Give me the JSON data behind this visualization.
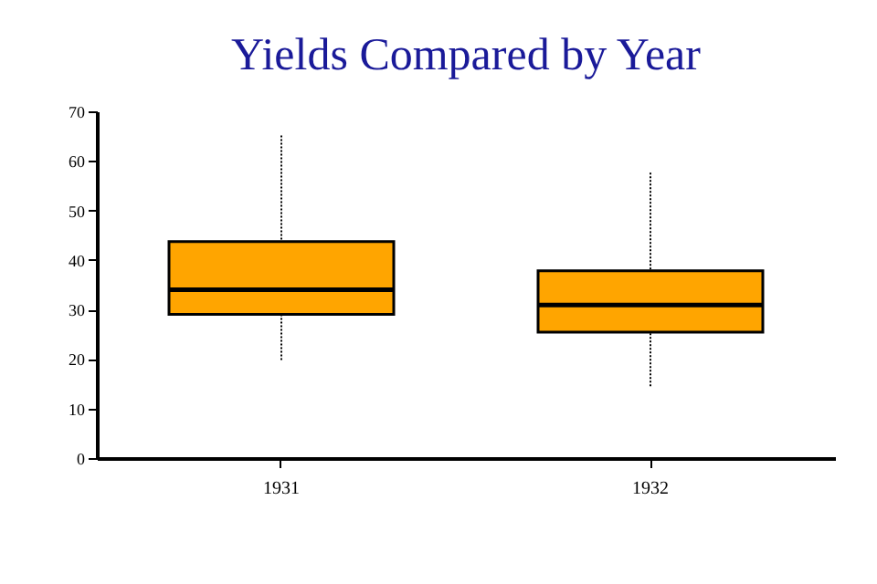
{
  "chart_data": {
    "type": "box",
    "title": "Yields Compared by Year",
    "categories": [
      "1931",
      "1932"
    ],
    "boxes": [
      {
        "low": 19.8,
        "q1": 29.0,
        "median": 34.0,
        "q3": 43.7,
        "high": 65.5
      },
      {
        "low": 14.5,
        "q1": 25.4,
        "median": 30.9,
        "q3": 37.8,
        "high": 57.8
      }
    ],
    "color": "#ffa500",
    "ylim": [
      0,
      70
    ],
    "yticks": [
      0,
      10,
      20,
      30,
      40,
      50,
      60,
      70
    ],
    "grid": false,
    "line_style": "dotted"
  }
}
